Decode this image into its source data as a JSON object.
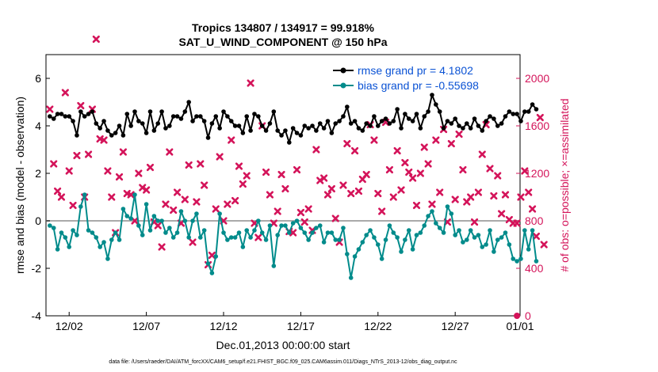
{
  "chart_data": {
    "type": "line",
    "title_line1": "Tropics 134807 / 134917 = 99.918%",
    "title_line2": "SAT_U_WIND_COMPONENT @ 150 hPa",
    "xlabel": "Dec.01,2013 00:00:00 start",
    "ylabel_left": "rmse and bias (model - observation)",
    "ylabel_right": "# of obs: o=possible; ×=assimilated",
    "footer": "data file: /Users/raeder/DAI/ATM_forcXX/CAM6_setup/f.e21.FHIST_BGC.f09_025.CAM6assim.011/Diags_NTrS_2013-12/obs_diag_output.nc",
    "xlim": [
      0.5,
      31.2
    ],
    "ylim_left": [
      -4,
      7
    ],
    "ylim_right": [
      0,
      2200
    ],
    "x_ticks": [
      {
        "value": 2,
        "label": "12/02"
      },
      {
        "value": 7,
        "label": "12/07"
      },
      {
        "value": 12,
        "label": "12/12"
      },
      {
        "value": 17,
        "label": "12/17"
      },
      {
        "value": 22,
        "label": "12/22"
      },
      {
        "value": 27,
        "label": "12/27"
      },
      {
        "value": 32,
        "label": "01/01"
      }
    ],
    "y_ticks_left": [
      -4,
      -2,
      0,
      2,
      4,
      6
    ],
    "y_ticks_right": [
      0,
      400,
      800,
      1200,
      1600,
      2000
    ],
    "zero_line": 0,
    "x_start": 0.75,
    "x_step": 0.25,
    "colors": {
      "rmse": "#000000",
      "bias": "#008b8b",
      "obs": "#d4145a",
      "zero": "#aaaaaa",
      "legend_text": "#0a52d4"
    },
    "series": [
      {
        "name": "rmse grand pr = 4.1802",
        "axis": "left",
        "values": [
          4.4,
          4.3,
          4.5,
          4.5,
          4.4,
          4.4,
          4.2,
          3.6,
          4.6,
          4.4,
          4.5,
          4.6,
          4.1,
          3.9,
          4.2,
          3.8,
          3.6,
          3.7,
          4.0,
          3.6,
          4.5,
          4.0,
          4.6,
          4.2,
          4.1,
          3.7,
          4.6,
          3.8,
          4.1,
          4.6,
          3.9,
          4.0,
          4.4,
          4.4,
          4.3,
          4.6,
          5.0,
          4.2,
          4.4,
          4.4,
          4.2,
          3.5,
          4.1,
          4.4,
          3.9,
          4.6,
          4.4,
          4.2,
          4.0,
          4.0,
          3.7,
          4.4,
          3.8,
          4.5,
          4.4,
          4.0,
          3.8,
          4.1,
          4.6,
          3.8,
          3.6,
          3.8,
          3.3,
          3.9,
          3.7,
          3.6,
          4.0,
          3.9,
          4.0,
          3.8,
          4.1,
          3.9,
          4.2,
          3.7,
          4.1,
          4.2,
          4.4,
          4.8,
          4.1,
          4.2,
          3.9,
          3.8,
          4.1,
          4.0,
          4.4,
          4.0,
          4.2,
          4.3,
          4.1,
          4.2,
          4.7,
          3.9,
          4.5,
          4.3,
          4.2,
          4.5,
          3.9,
          4.4,
          4.6,
          5.3,
          4.9,
          4.6,
          3.9,
          4.2,
          4.1,
          4.3,
          4.0,
          3.9,
          4.1,
          3.9,
          4.3,
          4.0,
          3.8,
          4.2,
          4.4,
          4.3,
          4.0,
          4.1,
          4.4,
          4.6,
          4.5,
          4.5,
          4.2,
          4.6,
          4.6,
          4.9,
          4.7
        ]
      },
      {
        "name": "bias grand pr = -0.55698",
        "axis": "left",
        "values": [
          -0.2,
          -0.3,
          -1.2,
          -0.5,
          -0.7,
          -1.1,
          -0.4,
          -0.6,
          0.6,
          1.1,
          -0.4,
          -0.5,
          -0.7,
          -1.1,
          -0.9,
          -1.6,
          -0.8,
          -0.5,
          -0.8,
          0.5,
          0.2,
          0.1,
          1.1,
          -0.2,
          -0.6,
          0.7,
          -0.4,
          0.2,
          0.0,
          0.0,
          -0.5,
          -0.3,
          -0.7,
          -0.5,
          0.4,
          0.0,
          -0.7,
          0.0,
          0.3,
          -0.7,
          -0.4,
          -1.8,
          -2.2,
          -1.5,
          0.3,
          -0.5,
          -0.8,
          -0.7,
          -0.7,
          -0.5,
          -1.1,
          -0.4,
          -0.7,
          -0.4,
          0.0,
          -0.5,
          -0.8,
          -0.2,
          -1.9,
          -0.6,
          -0.2,
          -0.2,
          -0.5,
          -0.1,
          0.0,
          -0.3,
          -0.5,
          -0.8,
          -0.5,
          -0.3,
          -0.2,
          -0.9,
          -0.5,
          -0.5,
          -0.8,
          -0.8,
          -0.3,
          -1.4,
          -2.4,
          -1.5,
          -1.2,
          -0.9,
          -0.6,
          -0.4,
          -0.7,
          -1.0,
          -1.6,
          -0.8,
          -0.2,
          -0.5,
          -0.7,
          -1.3,
          -0.8,
          -0.4,
          -1.2,
          -0.6,
          -0.5,
          -0.2,
          0.2,
          0.4,
          -0.1,
          -0.3,
          -0.5,
          0.6,
          0.3,
          -0.6,
          -0.4,
          -0.9,
          -0.8,
          -0.4,
          -0.7,
          -0.6,
          -1.1,
          -1.0,
          -0.4,
          -1.3,
          -0.8,
          -0.7,
          -0.5,
          -1.0,
          -1.6,
          -1.7,
          -1.6,
          -0.4,
          -1.2,
          -0.4,
          -1.7
        ]
      },
      {
        "name": "obs assimilated",
        "axis": "right",
        "values": [
          1740,
          1280,
          1050,
          1000,
          1880,
          1220,
          930,
          1350,
          1770,
          1000,
          1360,
          1740,
          2330,
          1490,
          1480,
          1220,
          1000,
          700,
          1170,
          1380,
          1030,
          1020,
          800,
          1200,
          1080,
          1060,
          1250,
          790,
          760,
          580,
          940,
          1380,
          890,
          1040,
          780,
          980,
          1270,
          620,
          960,
          1280,
          1100,
          430,
          510,
          900,
          1340,
          800,
          940,
          1480,
          970,
          1260,
          1110,
          1180,
          1960,
          780,
          660,
          1600,
          1210,
          1020,
          780,
          880,
          1190,
          1070,
          710,
          700,
          1230,
          870,
          790,
          900,
          720,
          1400,
          1140,
          1160,
          1020,
          1070,
          820,
          620,
          1100,
          1450,
          1030,
          1390,
          1050,
          1150,
          1190,
          1610,
          1480,
          1030,
          880,
          1630,
          1230,
          1000,
          1390,
          1060,
          1290,
          1210,
          1160,
          930,
          1200,
          1420,
          1280,
          940,
          1480,
          1040,
          1570,
          790,
          1450,
          980,
          1530,
          1230,
          960,
          1000,
          790,
          1040,
          1360,
          1610,
          1240,
          1010,
          1180,
          860,
          1020,
          810,
          780,
          780,
          1000,
          1220,
          1040,
          900,
          670,
          1670,
          600
        ]
      }
    ],
    "endpoint_marker": {
      "x": 31.0,
      "value": 0
    }
  }
}
